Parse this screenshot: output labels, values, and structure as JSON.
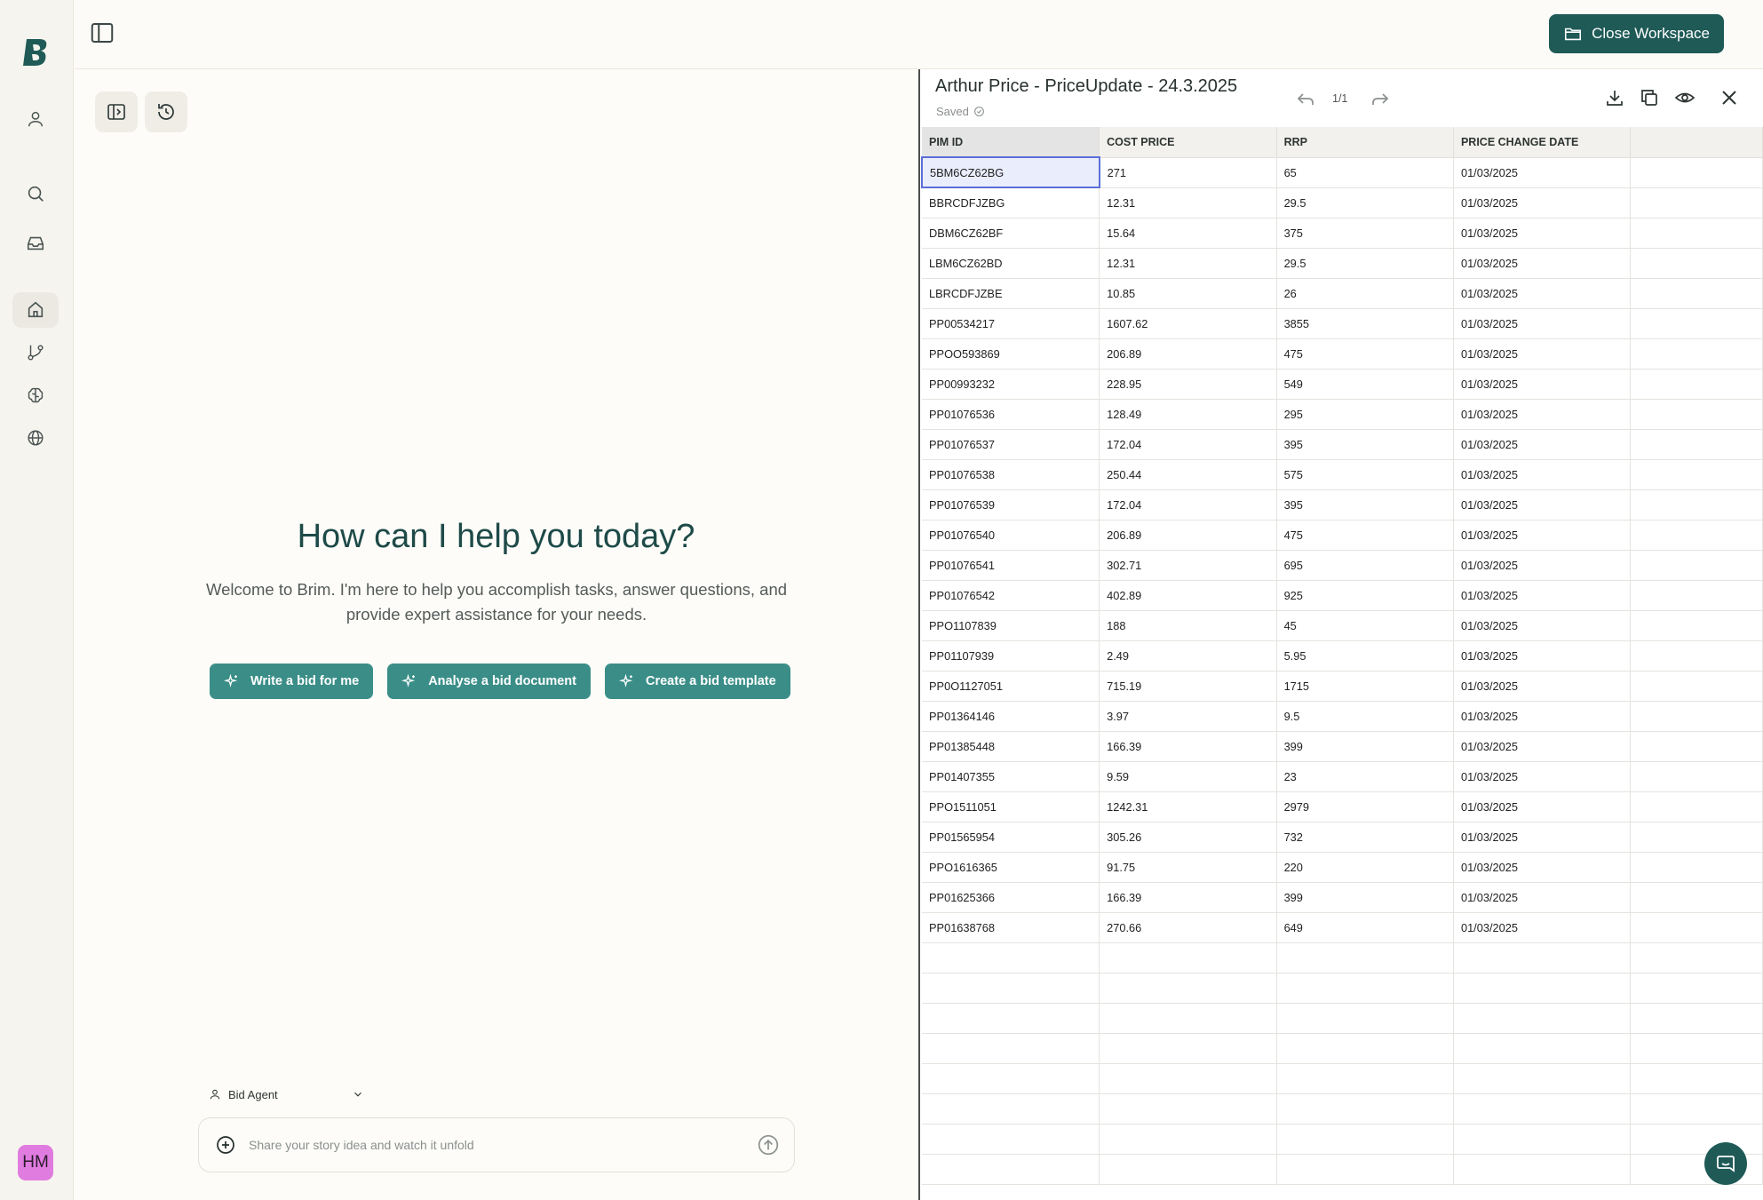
{
  "sidebar": {
    "avatar_initials": "HM",
    "items": [
      {
        "name": "profile",
        "icon": "user-icon"
      },
      {
        "name": "search",
        "icon": "search-icon"
      },
      {
        "name": "inbox",
        "icon": "inbox-icon"
      },
      {
        "name": "home",
        "icon": "home-icon",
        "active": true
      },
      {
        "name": "workflows",
        "icon": "git-branch-icon"
      },
      {
        "name": "knowledge",
        "icon": "brain-icon"
      },
      {
        "name": "web",
        "icon": "globe-icon"
      }
    ]
  },
  "header": {
    "close_workspace_label": "Close Workspace",
    "accent_color": "#1f5a57"
  },
  "main": {
    "title": "How can I help you today?",
    "subtitle": "Welcome to Brim. I'm here to help you accomplish tasks, answer questions, and provide expert assistance for your needs.",
    "actions": [
      {
        "label": "Write a bid for me"
      },
      {
        "label": "Analyse a bid document"
      },
      {
        "label": "Create a bid template"
      }
    ],
    "agent_select": "Bid Agent",
    "input_placeholder": "Share your story idea and watch it unfold"
  },
  "sheet": {
    "title": "Arthur Price - PriceUpdate - 24.3.2025",
    "status": "Saved",
    "page_indicator": "1/1",
    "columns": [
      "PIM ID",
      "COST PRICE",
      "RRP",
      "PRICE CHANGE DATE"
    ],
    "rows": [
      [
        "5BM6CZ62BG",
        "271",
        "65",
        "01/03/2025"
      ],
      [
        "BBRCDFJZBG",
        "12.31",
        "29.5",
        "01/03/2025"
      ],
      [
        "DBM6CZ62BF",
        "15.64",
        "375",
        "01/03/2025"
      ],
      [
        "LBM6CZ62BD",
        "12.31",
        "29.5",
        "01/03/2025"
      ],
      [
        "LBRCDFJZBE",
        "10.85",
        "26",
        "01/03/2025"
      ],
      [
        "PP00534217",
        "1607.62",
        "3855",
        "01/03/2025"
      ],
      [
        "PPOO593869",
        "206.89",
        "475",
        "01/03/2025"
      ],
      [
        "PP00993232",
        "228.95",
        "549",
        "01/03/2025"
      ],
      [
        "PP01076536",
        "128.49",
        "295",
        "01/03/2025"
      ],
      [
        "PP01076537",
        "172.04",
        "395",
        "01/03/2025"
      ],
      [
        "PP01076538",
        "250.44",
        "575",
        "01/03/2025"
      ],
      [
        "PP01076539",
        "172.04",
        "395",
        "01/03/2025"
      ],
      [
        "PP01076540",
        "206.89",
        "475",
        "01/03/2025"
      ],
      [
        "PP01076541",
        "302.71",
        "695",
        "01/03/2025"
      ],
      [
        "PP01076542",
        "402.89",
        "925",
        "01/03/2025"
      ],
      [
        "PPO1107839",
        "188",
        "45",
        "01/03/2025"
      ],
      [
        "PP01107939",
        "2.49",
        "5.95",
        "01/03/2025"
      ],
      [
        "PP0O1127051",
        "715.19",
        "1715",
        "01/03/2025"
      ],
      [
        "PP01364146",
        "3.97",
        "9.5",
        "01/03/2025"
      ],
      [
        "PP01385448",
        "166.39",
        "399",
        "01/03/2025"
      ],
      [
        "PP01407355",
        "9.59",
        "23",
        "01/03/2025"
      ],
      [
        "PPO1511051",
        "1242.31",
        "2979",
        "01/03/2025"
      ],
      [
        "PP01565954",
        "305.26",
        "732",
        "01/03/2025"
      ],
      [
        "PPO1616365",
        "91.75",
        "220",
        "01/03/2025"
      ],
      [
        "PP01625366",
        "166.39",
        "399",
        "01/03/2025"
      ],
      [
        "PP01638768",
        "270.66",
        "649",
        "01/03/2025"
      ]
    ],
    "empty_rows": 8
  }
}
